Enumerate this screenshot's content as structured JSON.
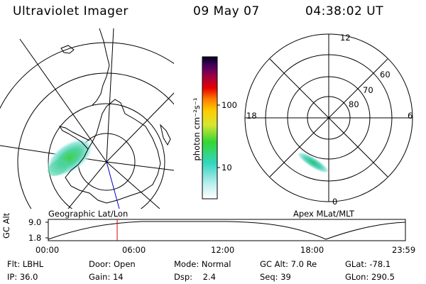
{
  "header": {
    "instrument": "Ultraviolet Imager",
    "date": "09 May 07",
    "time": "04:38:02 UT"
  },
  "colors": {
    "background": "#ffffff",
    "foreground": "#000000",
    "current_time_marker": "#e00000",
    "meridian_line": "#0000c0"
  },
  "colorbar": {
    "label": "photon cm⁻²s⁻¹",
    "ticks": [
      "100",
      "10"
    ],
    "scale": "log"
  },
  "left_panel": {
    "label": "Geographic Lat/Lon",
    "projection": "polar-south"
  },
  "right_panel": {
    "label": "Apex MLat/MLT",
    "mlt_labels": {
      "top": "12",
      "left": "18",
      "right": "6",
      "bottom": "0"
    },
    "lat_labels": [
      "60",
      "70",
      "80"
    ]
  },
  "altitude_plot": {
    "ylabel": "GC Alt",
    "y_ticks": [
      "9.0",
      "1.8"
    ],
    "x_ticks": [
      "00:00",
      "06:00",
      "12:00",
      "18:00",
      "23:59"
    ],
    "current_time_hours": 4.63
  },
  "info": {
    "row1": [
      {
        "label": "Flt:",
        "value": "LBHL"
      },
      {
        "label": "Door:",
        "value": "Open"
      },
      {
        "label": "Mode:",
        "value": "Normal"
      },
      {
        "label": "GC Alt:",
        "value": "7.0 Re"
      },
      {
        "label": "GLat:",
        "value": "-78.1"
      }
    ],
    "row2": [
      {
        "label": "IP:",
        "value": "36.0"
      },
      {
        "label": "Gain:",
        "value": "14"
      },
      {
        "label": "Dsp:",
        "value": "2.4"
      },
      {
        "label": "Seq:",
        "value": "39"
      },
      {
        "label": "GLon:",
        "value": "290.5"
      }
    ]
  }
}
